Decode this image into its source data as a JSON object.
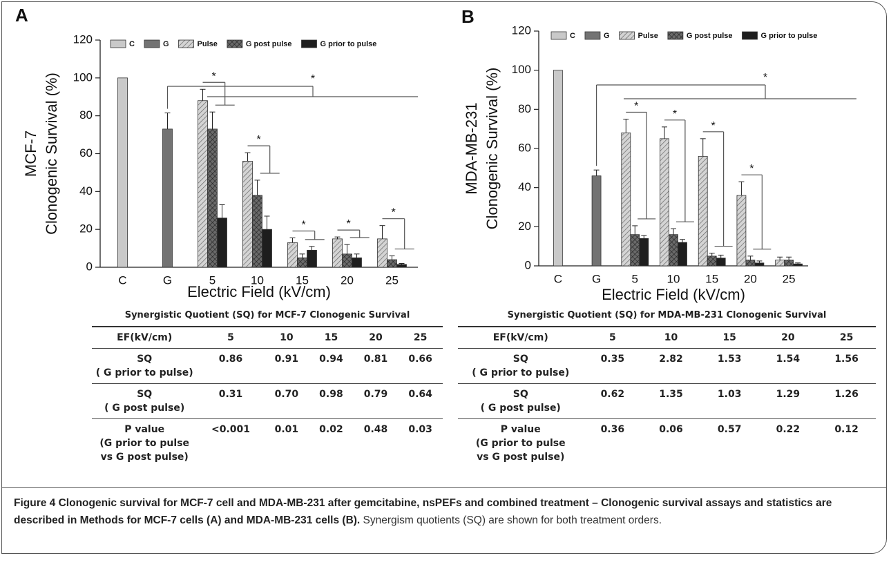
{
  "chart_data": [
    {
      "type": "bar",
      "panel": "A",
      "ylabel": [
        "MCF-7",
        "Clonogenic Survival (%)"
      ],
      "xlabel": "Electric Field (kV/cm)",
      "categories": [
        "C",
        "G",
        "5",
        "10",
        "15",
        "20",
        "25"
      ],
      "series": [
        {
          "name": "C",
          "color": "#c9c9c9",
          "hatch": "none",
          "values": [
            100,
            null,
            null,
            null,
            null,
            null,
            null
          ],
          "errors": [
            null,
            null,
            null,
            null,
            null,
            null,
            null
          ]
        },
        {
          "name": "G",
          "color": "#737373",
          "hatch": "none",
          "values": [
            null,
            73,
            null,
            null,
            null,
            null,
            null
          ],
          "errors": [
            null,
            8.5,
            null,
            null,
            null,
            null,
            null
          ]
        },
        {
          "name": "Pulse",
          "color": "#d4d4d4",
          "hatch": "diagonal",
          "values": [
            null,
            null,
            88,
            56,
            13,
            15,
            15
          ],
          "errors": [
            null,
            null,
            6,
            4.5,
            2.5,
            1,
            7
          ]
        },
        {
          "name": "G post pulse",
          "color": "#6a6a6a",
          "hatch": "cross",
          "values": [
            null,
            null,
            73,
            38,
            5,
            7,
            4
          ],
          "errors": [
            null,
            null,
            9,
            8,
            2,
            5,
            2
          ]
        },
        {
          "name": "G prior to pulse",
          "color": "#1e1e1e",
          "hatch": "none",
          "values": [
            null,
            null,
            26,
            20,
            9,
            5,
            1.5
          ],
          "errors": [
            null,
            null,
            7,
            7,
            2,
            2,
            0.5
          ]
        }
      ],
      "ylim": [
        0,
        120
      ],
      "yticks": [
        0,
        20,
        40,
        60,
        80,
        100,
        120
      ],
      "annotations": [
        "*",
        "*",
        "*",
        "*",
        "*",
        "*"
      ]
    },
    {
      "type": "bar",
      "panel": "B",
      "ylabel": [
        "MDA-MB-231",
        "Clonogenic Survival (%)"
      ],
      "xlabel": "Electric Field (kV/cm)",
      "categories": [
        "C",
        "G",
        "5",
        "10",
        "15",
        "20",
        "25"
      ],
      "series": [
        {
          "name": "C",
          "color": "#c9c9c9",
          "hatch": "none",
          "values": [
            100,
            null,
            null,
            null,
            null,
            null,
            null
          ],
          "errors": [
            null,
            null,
            null,
            null,
            null,
            null,
            null
          ]
        },
        {
          "name": "G",
          "color": "#737373",
          "hatch": "none",
          "values": [
            null,
            46,
            null,
            null,
            null,
            null,
            null
          ],
          "errors": [
            null,
            3,
            null,
            null,
            null,
            null,
            null
          ]
        },
        {
          "name": "Pulse",
          "color": "#d4d4d4",
          "hatch": "diagonal",
          "values": [
            null,
            null,
            68,
            65,
            56,
            36,
            3
          ],
          "errors": [
            null,
            null,
            7,
            6,
            9,
            7,
            1.5
          ]
        },
        {
          "name": "G post pulse",
          "color": "#6a6a6a",
          "hatch": "cross",
          "values": [
            null,
            null,
            16,
            16,
            5,
            3,
            3
          ],
          "errors": [
            null,
            null,
            4.5,
            3,
            1.5,
            2,
            1.5
          ]
        },
        {
          "name": "G prior to pulse",
          "color": "#1e1e1e",
          "hatch": "none",
          "values": [
            null,
            null,
            14,
            12,
            4,
            1.5,
            1
          ],
          "errors": [
            null,
            null,
            1.5,
            1.5,
            1.5,
            1,
            0.5
          ]
        }
      ],
      "ylim": [
        0,
        120
      ],
      "yticks": [
        0,
        20,
        40,
        60,
        80,
        100,
        120
      ],
      "annotations": [
        "*",
        "*",
        "*",
        "*",
        "*"
      ]
    }
  ],
  "tables": [
    {
      "title": "Synergistic Quotient (SQ) for MCF-7 Clonogenic Survival",
      "header": [
        "EF(kV/cm)",
        "5",
        "10",
        "15",
        "20",
        "25"
      ],
      "rows": [
        [
          [
            "SQ",
            "( G prior to pulse)"
          ],
          "0.86",
          "0.91",
          "0.94",
          "0.81",
          "0.66"
        ],
        [
          [
            "SQ",
            "( G post pulse)"
          ],
          "0.31",
          "0.70",
          "0.98",
          "0.79",
          "0.64"
        ],
        [
          [
            "P value",
            "(G prior to pulse",
            "vs G post pulse)"
          ],
          "<0.001",
          "0.01",
          "0.02",
          "0.48",
          "0.03"
        ]
      ]
    },
    {
      "title": "Synergistic Quotient (SQ) for MDA-MB-231 Clonogenic Survival",
      "header": [
        "EF(kV/cm)",
        "5",
        "10",
        "15",
        "20",
        "25"
      ],
      "rows": [
        [
          [
            "SQ",
            "( G prior to pulse)"
          ],
          "0.35",
          "2.82",
          "1.53",
          "1.54",
          "1.56"
        ],
        [
          [
            "SQ",
            "( G post pulse)"
          ],
          "0.62",
          "1.35",
          "1.03",
          "1.29",
          "1.26"
        ],
        [
          [
            "P value",
            "(G prior to pulse",
            "vs G post pulse)"
          ],
          "0.36",
          "0.06",
          "0.57",
          "0.22",
          "0.12"
        ]
      ]
    }
  ],
  "caption": {
    "label": "Figure 4",
    "title": "Clonogenic survival for MCF-7 cell and MDA-MB-231 after gemcitabine, nsPEFs and combined treatment – Clonogenic survival assays and statistics are described in Methods for MCF-7 cells (A) and MDA-MB-231 cells (B).",
    "text": "Synergism quotients (SQ) are shown for both treatment orders."
  }
}
